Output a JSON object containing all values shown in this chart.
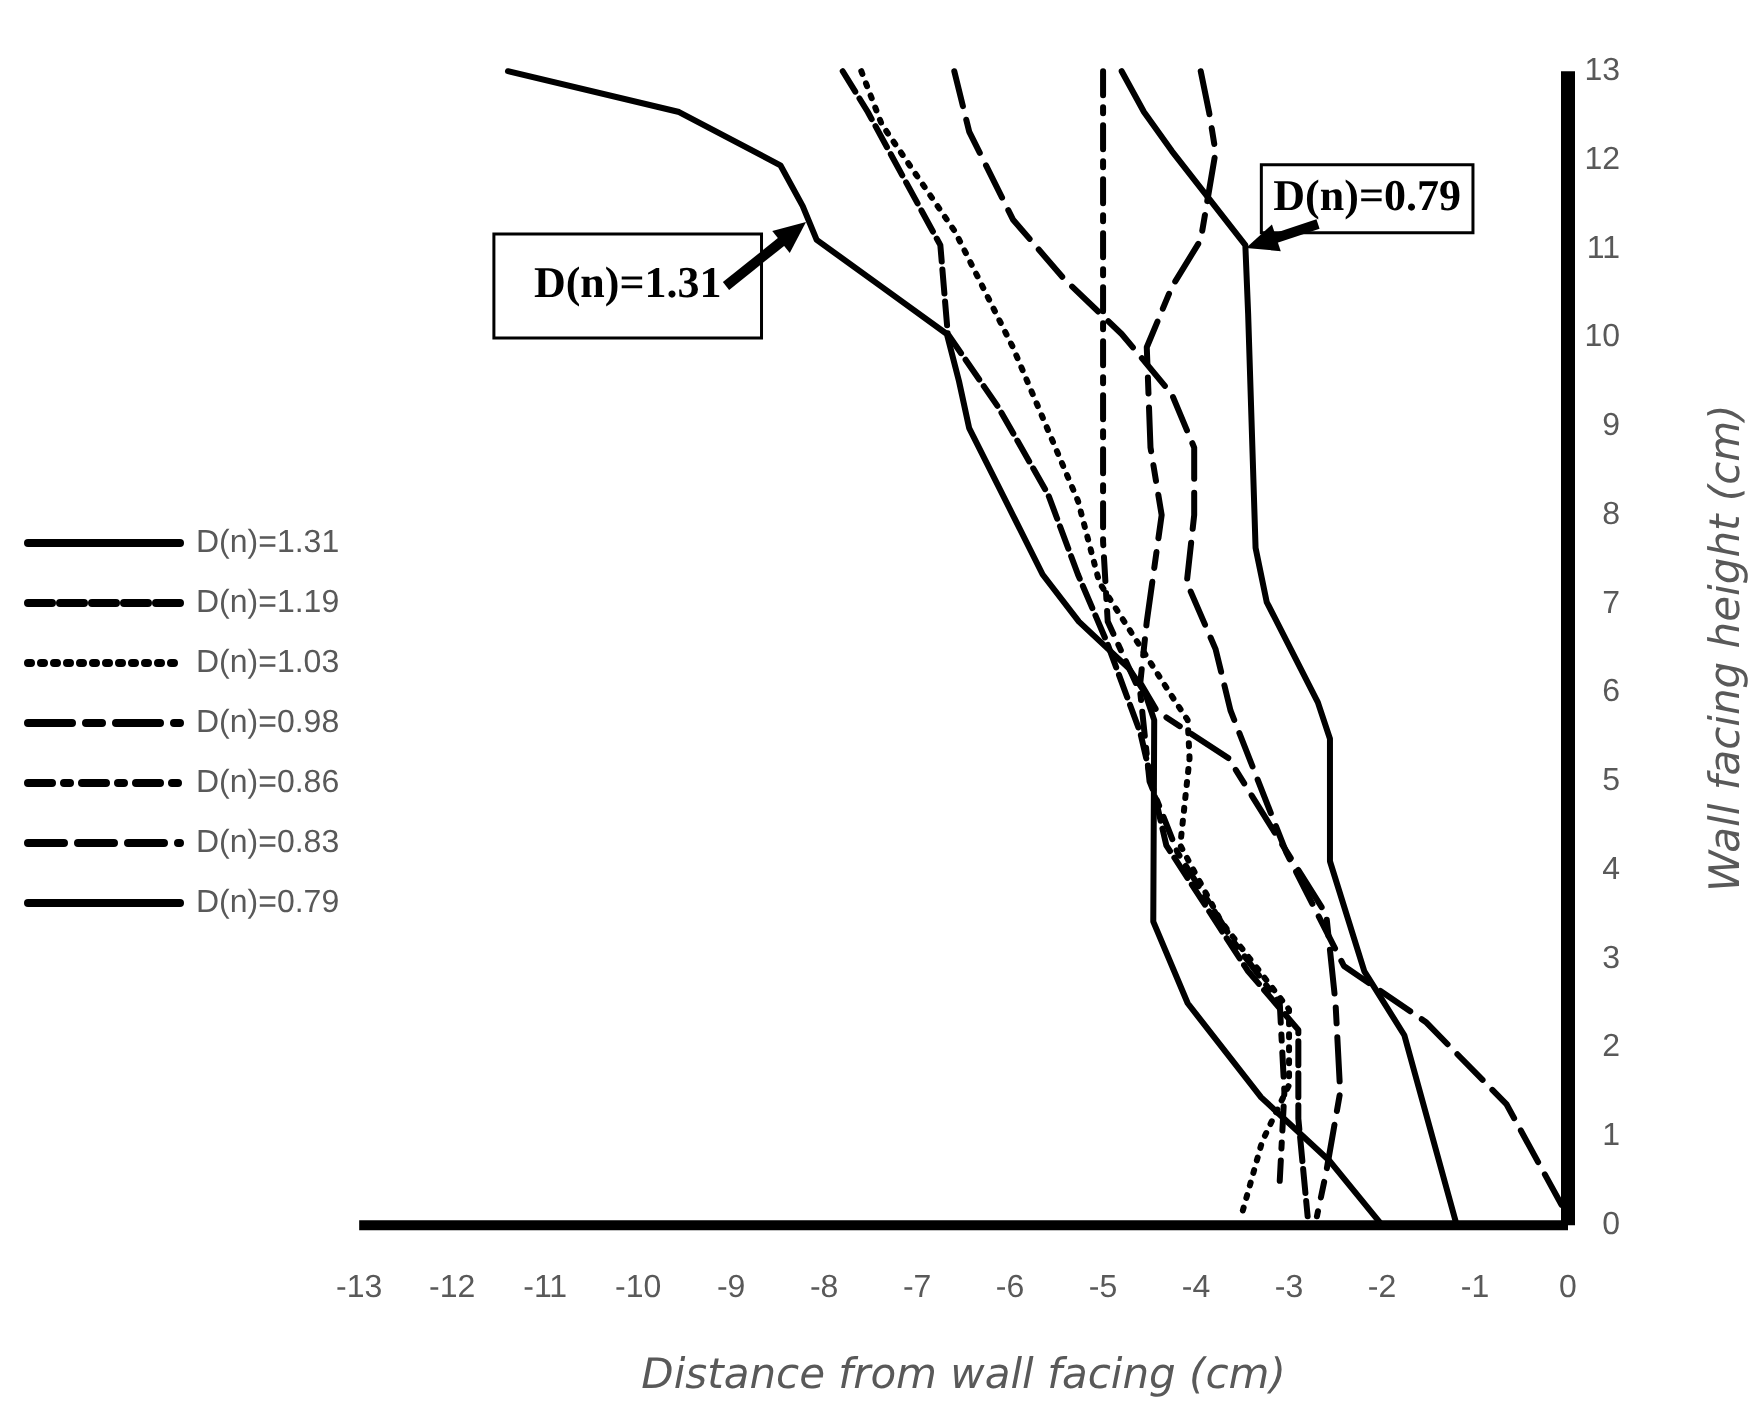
{
  "chart_data": {
    "type": "line",
    "xlabel": "Distance from wall facing (cm)",
    "ylabel": "Wall facing height (cm)",
    "xlim": [
      -13,
      0
    ],
    "xticks": [
      -13,
      -12,
      -11,
      -10,
      -9,
      -8,
      -7,
      -6,
      -5,
      -4,
      -3,
      -2,
      -1,
      0
    ],
    "ylim": [
      0,
      13
    ],
    "yticks": [
      0,
      1,
      2,
      3,
      4,
      5,
      6,
      7,
      8,
      9,
      10,
      11,
      12,
      13
    ],
    "grid": false,
    "legend": "left",
    "marker": "none",
    "series": [
      {
        "name": "D(n)=1.31",
        "color": "#000000",
        "line_style": "solid",
        "x": [
          -11.4,
          -9.56,
          -8.47,
          -8.23,
          -8.08,
          -7.38,
          -6.68,
          -6.55,
          -6.44,
          -5.97,
          -5.65,
          -5.26,
          -4.72,
          -4.55,
          -4.45,
          -4.46,
          -4.09,
          -3.3,
          -2.56,
          -2.0
        ],
        "values": [
          13,
          12.54,
          11.94,
          11.48,
          11.1,
          10.57,
          10.04,
          9.51,
          8.98,
          8.0,
          7.33,
          6.8,
          6.27,
          6.0,
          5.69,
          3.42,
          2.5,
          1.44,
          0.72,
          0
        ]
      },
      {
        "name": "D(n)=1.19",
        "color": "#000000",
        "line_style": "dashed",
        "x": [
          -7.8,
          -7.53,
          -6.75,
          -6.67,
          -6.13,
          -5.59,
          -5.27,
          -4.96,
          -4.6,
          -4.32,
          -3.44,
          -2.9,
          -2.9,
          -2.8
        ],
        "values": [
          13,
          12.54,
          11.04,
          10.04,
          9.22,
          8.23,
          7.33,
          6.57,
          5.55,
          4.28,
          2.86,
          2.2,
          1.2,
          0.1
        ]
      },
      {
        "name": "D(n)=1.03",
        "color": "#000000",
        "line_style": "dotted",
        "x": [
          -7.6,
          -7.38,
          -6.59,
          -5.97,
          -5.27,
          -5.04,
          -4.26,
          -4.09,
          -4.07,
          -4.17,
          -3.73,
          -3.0,
          -3.0,
          -3.29,
          -3.52
        ],
        "values": [
          13,
          12.4,
          11.19,
          9.89,
          8.16,
          7.24,
          5.96,
          5.69,
          5.26,
          4.28,
          3.42,
          2.43,
          1.58,
          0.94,
          0.08
        ]
      },
      {
        "name": "D(n)=0.98",
        "color": "#000000",
        "line_style": "dashed",
        "x": [
          -3.95,
          -3.86,
          -3.79,
          -3.95,
          -4.26,
          -4.53,
          -4.49,
          -4.37,
          -4.53,
          -4.6,
          -4.42,
          -3.65,
          -3.2,
          -2.6,
          -2.5,
          -2.45,
          -2.6,
          -2.7
        ],
        "values": [
          13,
          12.54,
          12.09,
          11.1,
          10.57,
          9.89,
          8.76,
          8.0,
          6.8,
          6.11,
          5.79,
          5.26,
          4.5,
          3.5,
          2.5,
          1.5,
          0.6,
          0.1
        ]
      },
      {
        "name": "D(n)=0.86",
        "color": "#000000",
        "line_style": "dashed",
        "x": [
          -5.0,
          -5.0,
          -4.95,
          -4.6,
          -4.5,
          -4.2,
          -3.6,
          -3.1,
          -3.05,
          -3.1
        ],
        "values": [
          13,
          7.7,
          6.8,
          6.0,
          5.0,
          4.2,
          3.2,
          2.5,
          1.5,
          0.5
        ]
      },
      {
        "name": "D(n)=0.83",
        "color": "#000000",
        "line_style": "dashed",
        "x": [
          -6.6,
          -6.44,
          -5.97,
          -5.42,
          -4.8,
          -4.26,
          -4.02,
          -4.02,
          -4.1,
          -3.79,
          -3.63,
          -3.03,
          -2.41,
          -1.53,
          -0.66,
          -0.07
        ],
        "values": [
          13,
          12.32,
          11.33,
          10.66,
          10.04,
          9.36,
          8.76,
          8.0,
          7.24,
          6.49,
          5.8,
          4.2,
          2.92,
          2.29,
          1.36,
          0.23
        ]
      },
      {
        "name": "D(n)=0.79",
        "color": "#000000",
        "line_style": "solid",
        "x": [
          -4.8,
          -4.56,
          -4.26,
          -3.47,
          -3.44,
          -3.36,
          -3.24,
          -2.69,
          -2.56,
          -2.56,
          -2.19,
          -1.76,
          -1.21
        ],
        "values": [
          13,
          12.54,
          12.1,
          11.04,
          10.27,
          7.63,
          7.02,
          5.89,
          5.48,
          4.1,
          2.86,
          2.14,
          0.05
        ]
      }
    ],
    "annotations": [
      {
        "text": "D(n)=1.31",
        "x": -8.2,
        "y": 11.3
      },
      {
        "text": "D(n)=0.79",
        "x": -3.47,
        "y": 11.0
      }
    ]
  }
}
